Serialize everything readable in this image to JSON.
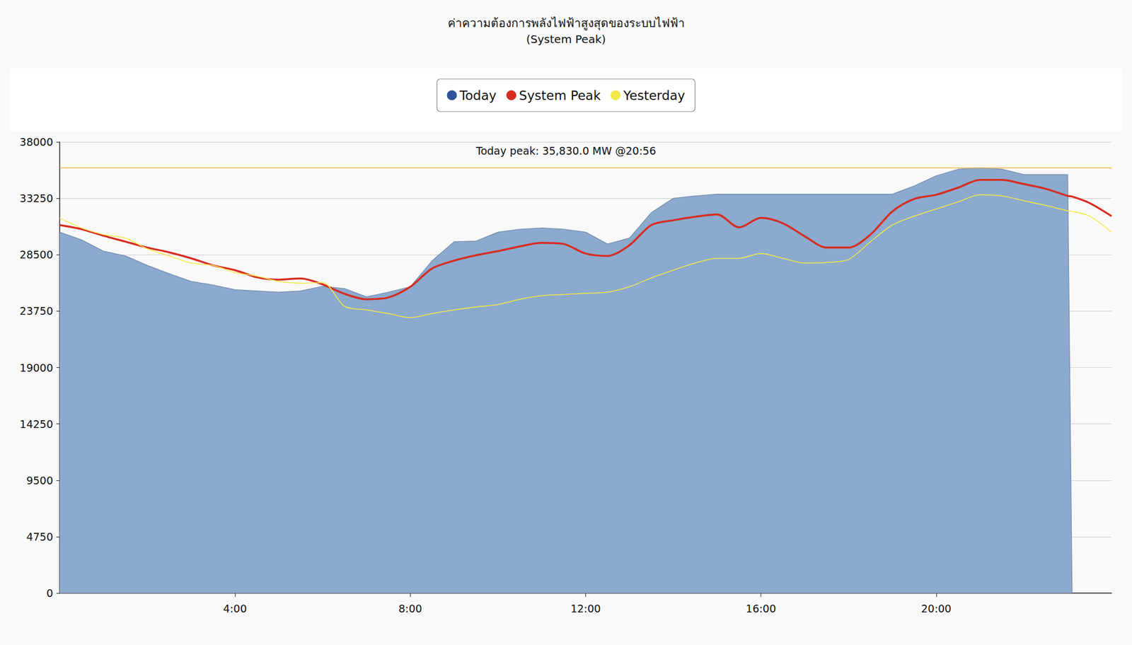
{
  "chart_data": {
    "type": "line",
    "title": "ค่าความต้องการพลังไฟฟ้าสูงสุดของระบบไฟฟ้า",
    "subtitle": "(System Peak)",
    "x": [
      0,
      0.5,
      1,
      1.5,
      2,
      2.5,
      3,
      3.5,
      4,
      4.5,
      5,
      5.5,
      6,
      6.5,
      7,
      7.5,
      8,
      8.5,
      9,
      9.5,
      10,
      10.5,
      11,
      11.5,
      12,
      12.5,
      13,
      13.5,
      14,
      14.5,
      15,
      15.5,
      16,
      16.5,
      17,
      17.5,
      18,
      18.5,
      19,
      19.5,
      20,
      20.5,
      21,
      21.5,
      22,
      22.5,
      23,
      23.1,
      23.5,
      24
    ],
    "xlim": [
      0,
      24
    ],
    "xticks": [
      {
        "value": 4,
        "label": "4:00"
      },
      {
        "value": 8,
        "label": "8:00"
      },
      {
        "value": 12,
        "label": "12:00"
      },
      {
        "value": 16,
        "label": "16:00"
      },
      {
        "value": 20,
        "label": "20:00"
      }
    ],
    "ylim": [
      0,
      38000
    ],
    "yticks": [
      0,
      4750,
      9500,
      14250,
      19000,
      23750,
      28500,
      33250,
      38000
    ],
    "grid": true,
    "legend": "top",
    "annotation": {
      "value": 35830,
      "label": "Today peak: 35,830.0 MW @20:56"
    },
    "series": [
      {
        "name": "Today",
        "type": "area",
        "color": "#2f5597",
        "values": [
          30400,
          29750,
          28800,
          28400,
          27600,
          26900,
          26250,
          25950,
          25550,
          25450,
          25350,
          25450,
          25850,
          25650,
          24950,
          25350,
          25800,
          28000,
          29600,
          29650,
          30400,
          30650,
          30750,
          30650,
          30400,
          29400,
          29900,
          32050,
          33250,
          33450,
          33600,
          33600,
          33600,
          33600,
          33600,
          33600,
          33600,
          33600,
          33600,
          34300,
          35150,
          35700,
          35830,
          35700,
          35250,
          35250,
          35250,
          0,
          null,
          null
        ]
      },
      {
        "name": "System Peak",
        "type": "line",
        "color": "#d62c20",
        "values": [
          31000,
          30650,
          30100,
          29600,
          29100,
          28700,
          28200,
          27600,
          27200,
          26600,
          26400,
          26500,
          26000,
          25200,
          24750,
          24900,
          25800,
          27350,
          28000,
          28450,
          28800,
          29200,
          29500,
          29400,
          28600,
          28400,
          29300,
          31000,
          31400,
          31700,
          31900,
          30800,
          31600,
          31150,
          30050,
          29100,
          29100,
          30200,
          32150,
          33200,
          33550,
          34150,
          34800,
          34800,
          34450,
          34050,
          33450,
          33400,
          32850,
          31750
        ]
      },
      {
        "name": "Yesterday",
        "type": "line",
        "color": "#f2e94a",
        "values": [
          31600,
          30750,
          30200,
          29900,
          29000,
          28400,
          27800,
          27600,
          27000,
          26700,
          26250,
          26100,
          26150,
          24150,
          23850,
          23550,
          23200,
          23550,
          23850,
          24100,
          24300,
          24750,
          25050,
          25150,
          25250,
          25350,
          25800,
          26550,
          27200,
          27800,
          28200,
          28200,
          28600,
          28200,
          27800,
          27850,
          28100,
          29600,
          31000,
          31750,
          32350,
          32950,
          33550,
          33450,
          33050,
          32650,
          32200,
          32150,
          31750,
          30400
        ]
      }
    ]
  }
}
